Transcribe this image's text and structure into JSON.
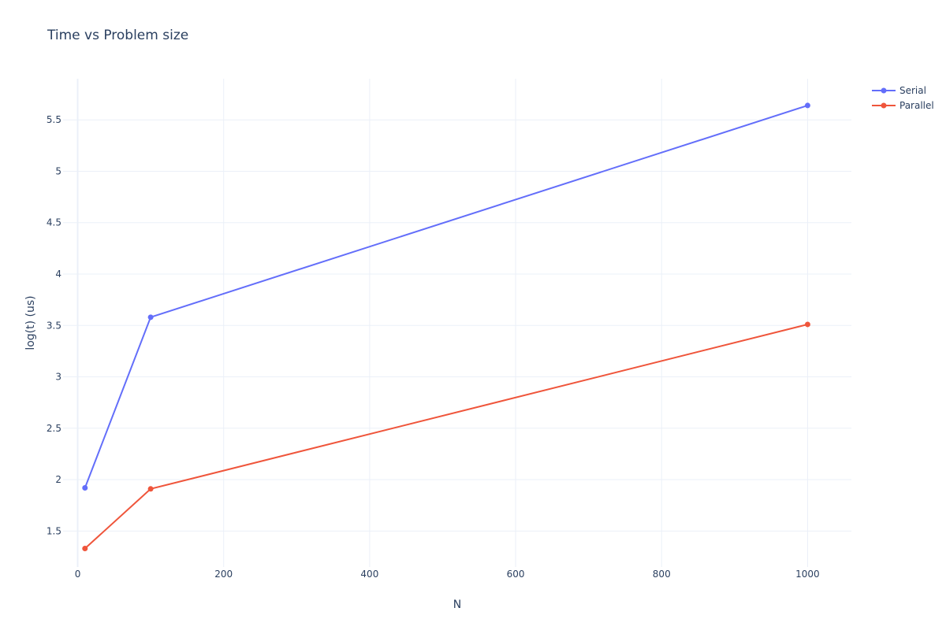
{
  "chart_data": {
    "type": "line",
    "title": "Time vs Problem size",
    "xlabel": "N",
    "ylabel": "log(t) (us)",
    "xlim": [
      -20,
      1060
    ],
    "ylim": [
      1.15,
      5.9
    ],
    "xticks": [
      0,
      200,
      400,
      600,
      800,
      1000
    ],
    "yticks": [
      1.5,
      2,
      2.5,
      3,
      3.5,
      4,
      4.5,
      5,
      5.5
    ],
    "ytick_labels": [
      "1.5",
      "2",
      "2.5",
      "3",
      "3.5",
      "4",
      "4.5",
      "5",
      "5.5"
    ],
    "xtick_labels": [
      "0",
      "200",
      "400",
      "600",
      "800",
      "1000"
    ],
    "grid": true,
    "legend_position": "top-right",
    "series": [
      {
        "name": "Serial",
        "color": "#636efa",
        "x": [
          10,
          100,
          1000
        ],
        "y": [
          1.92,
          3.58,
          5.64
        ]
      },
      {
        "name": "Parallel",
        "color": "#ef553b",
        "x": [
          10,
          100,
          1000
        ],
        "y": [
          1.33,
          1.91,
          3.51
        ]
      }
    ]
  }
}
